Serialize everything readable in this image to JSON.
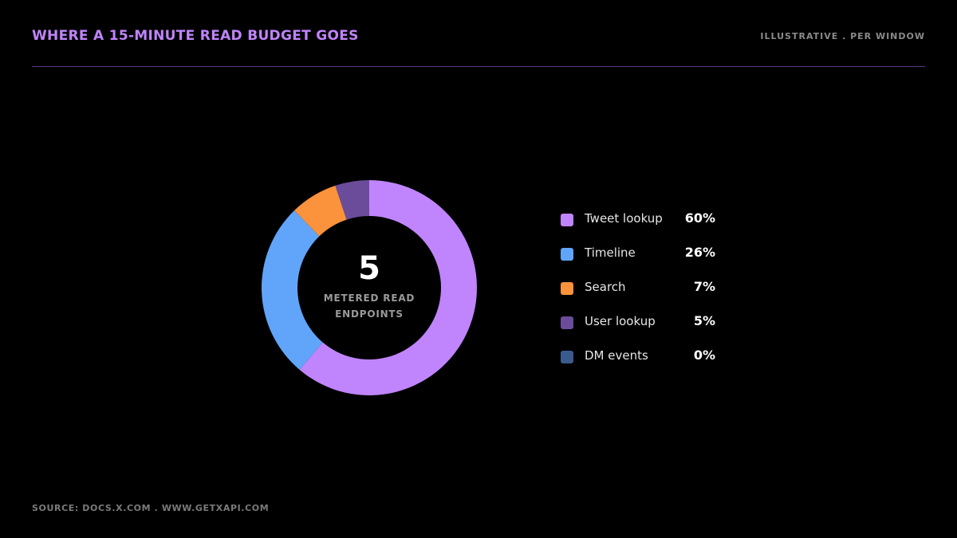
{
  "header": {
    "title": "WHERE A 15-MINUTE READ BUDGET GOES",
    "subtitle": "ILLUSTRATIVE . PER WINDOW"
  },
  "center": {
    "value": "5",
    "label_line1": "METERED READ",
    "label_line2": "ENDPOINTS"
  },
  "footer": {
    "source": "SOURCE: DOCS.X.COM . WWW.GETXAPI.COM"
  },
  "chart_data": {
    "type": "pie",
    "donut": true,
    "legend_position": "right",
    "slices": [
      {
        "name": "Tweet lookup",
        "value": 60,
        "label": "60%",
        "color": "#c084fc"
      },
      {
        "name": "Timeline",
        "value": 26,
        "label": "26%",
        "color": "#60a5fa"
      },
      {
        "name": "Search",
        "value": 7,
        "label": "7%",
        "color": "#fb923c"
      },
      {
        "name": "User lookup",
        "value": 5,
        "label": "5%",
        "color": "#6b4c9a"
      },
      {
        "name": "DM events",
        "value": 0,
        "label": "0%",
        "color": "#3b5b8f"
      }
    ]
  }
}
